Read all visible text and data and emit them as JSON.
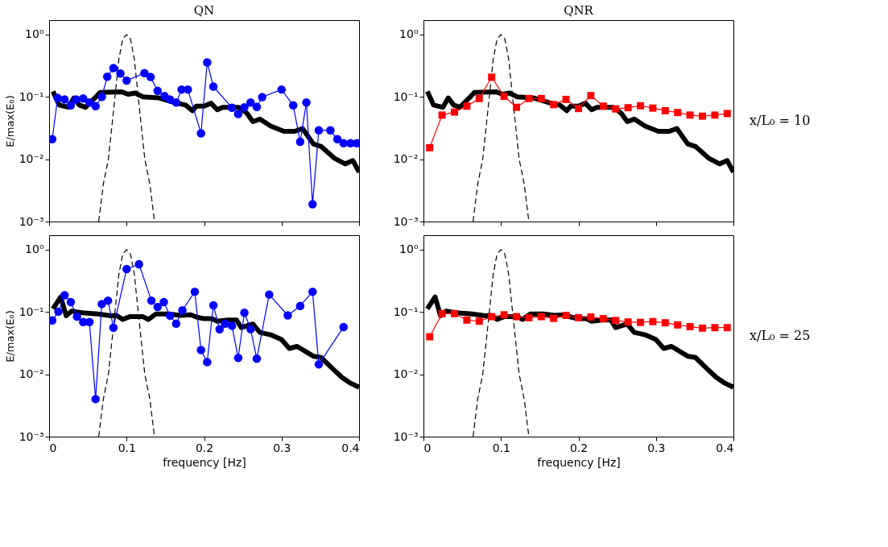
{
  "chart_data": [
    {
      "type": "line",
      "title": "QN",
      "ylabel": "E/max(E₀)",
      "log": true,
      "tick_labels": "y",
      "grid": false,
      "xlim": [
        0,
        0.4
      ],
      "xticks": [
        0,
        0.1,
        0.2,
        0.3,
        0.4
      ],
      "ylim": [
        0.001,
        1.7
      ],
      "yticks": [
        {
          "value": 0.001,
          "label": "10⁻³"
        },
        {
          "value": 0.01,
          "label": "10⁻²"
        },
        {
          "value": 0.1,
          "label": "10⁻¹"
        },
        {
          "value": 1,
          "label": "10⁰"
        }
      ],
      "series": [
        {
          "color": "#000000",
          "marker": "none",
          "line_style": "solid",
          "x": [
            0.005,
            0.013,
            0.025,
            0.032,
            0.039,
            0.047,
            0.059,
            0.066,
            0.094,
            0.102,
            0.111,
            0.121,
            0.142,
            0.162,
            0.176,
            0.185,
            0.19,
            0.2,
            0.209,
            0.217,
            0.224,
            0.245,
            0.255,
            0.263,
            0.272,
            0.286,
            0.303,
            0.317,
            0.327,
            0.341,
            0.351,
            0.368,
            0.382,
            0.392,
            0.4
          ],
          "values": [
            0.122,
            0.074,
            0.068,
            0.096,
            0.074,
            0.068,
            0.096,
            0.118,
            0.12,
            0.11,
            0.115,
            0.1,
            0.096,
            0.081,
            0.074,
            0.06,
            0.071,
            0.071,
            0.079,
            0.062,
            0.068,
            0.068,
            0.055,
            0.04,
            0.044,
            0.034,
            0.028,
            0.028,
            0.031,
            0.0176,
            0.016,
            0.0104,
            0.0084,
            0.0095,
            0.0062
          ]
        },
        {
          "color": "#000000",
          "marker": "none",
          "line_style": "dashed",
          "x": [
            0.064,
            0.07,
            0.0765,
            0.085,
            0.09,
            0.095,
            0.1,
            0.105,
            0.11,
            0.115,
            0.1235,
            0.13,
            0.136
          ],
          "values": [
            0.001,
            0.004,
            0.01,
            0.1,
            0.4,
            0.85,
            1,
            0.85,
            0.4,
            0.1,
            0.01,
            0.004,
            0.001
          ]
        },
        {
          "color": "#0000ff",
          "marker": "circle",
          "line_style": "solid",
          "x": [
            0.004,
            0.011,
            0.02,
            0.028,
            0.035,
            0.044,
            0.052,
            0.06,
            0.068,
            0.075,
            0.083,
            0.092,
            0.1,
            0.123,
            0.131,
            0.14,
            0.149,
            0.156,
            0.164,
            0.171,
            0.179,
            0.196,
            0.204,
            0.212,
            0.236,
            0.244,
            0.252,
            0.26,
            0.268,
            0.275,
            0.3,
            0.315,
            0.324,
            0.332,
            0.34,
            0.348,
            0.363,
            0.372,
            0.38,
            0.389,
            0.397
          ],
          "values": [
            0.021,
            0.096,
            0.091,
            0.073,
            0.091,
            0.094,
            0.081,
            0.071,
            0.1,
            0.21,
            0.29,
            0.237,
            0.182,
            0.24,
            0.208,
            0.125,
            0.103,
            0.091,
            0.081,
            0.131,
            0.131,
            0.026,
            0.357,
            0.146,
            0.067,
            0.053,
            0.068,
            0.081,
            0.069,
            0.099,
            0.131,
            0.073,
            0.019,
            0.081,
            0.0019,
            0.029,
            0.029,
            0.021,
            0.018,
            0.018,
            0.018
          ]
        }
      ]
    },
    {
      "type": "line",
      "title": "QNR",
      "annotations": [
        "x/L₀ = 10"
      ],
      "log": true,
      "tick_labels": "y",
      "grid": false,
      "xlim": [
        0,
        0.4
      ],
      "xticks": [
        0,
        0.1,
        0.2,
        0.3,
        0.4
      ],
      "ylim": [
        0.001,
        1.7
      ],
      "yticks": [
        {
          "value": 0.001,
          "label": "10⁻³"
        },
        {
          "value": 0.01,
          "label": "10⁻²"
        },
        {
          "value": 0.1,
          "label": "10⁻¹"
        },
        {
          "value": 1,
          "label": "10⁰"
        }
      ],
      "series": [
        {
          "color": "#000000",
          "marker": "none",
          "line_style": "solid",
          "x": [
            0.005,
            0.013,
            0.025,
            0.032,
            0.039,
            0.047,
            0.059,
            0.066,
            0.094,
            0.102,
            0.111,
            0.121,
            0.142,
            0.162,
            0.176,
            0.185,
            0.19,
            0.2,
            0.209,
            0.217,
            0.224,
            0.245,
            0.255,
            0.263,
            0.272,
            0.286,
            0.303,
            0.317,
            0.327,
            0.341,
            0.351,
            0.368,
            0.382,
            0.392,
            0.4
          ],
          "values": [
            0.122,
            0.074,
            0.068,
            0.096,
            0.074,
            0.068,
            0.096,
            0.118,
            0.12,
            0.11,
            0.115,
            0.1,
            0.096,
            0.081,
            0.074,
            0.06,
            0.071,
            0.071,
            0.079,
            0.062,
            0.068,
            0.068,
            0.055,
            0.04,
            0.044,
            0.034,
            0.028,
            0.028,
            0.031,
            0.0176,
            0.016,
            0.0104,
            0.0084,
            0.0095,
            0.0062
          ]
        },
        {
          "color": "#000000",
          "marker": "none",
          "line_style": "dashed",
          "x": [
            0.064,
            0.07,
            0.0765,
            0.085,
            0.09,
            0.095,
            0.1,
            0.105,
            0.11,
            0.115,
            0.1235,
            0.13,
            0.136
          ],
          "values": [
            0.001,
            0.004,
            0.01,
            0.1,
            0.4,
            0.85,
            1,
            0.85,
            0.4,
            0.1,
            0.01,
            0.004,
            0.001
          ]
        },
        {
          "color": "#ff0000",
          "marker": "square",
          "line_style": "solid",
          "x": [
            0.008,
            0.024,
            0.04,
            0.056,
            0.072,
            0.088,
            0.104,
            0.12,
            0.136,
            0.152,
            0.168,
            0.184,
            0.2,
            0.216,
            0.232,
            0.248,
            0.264,
            0.28,
            0.296,
            0.312,
            0.328,
            0.344,
            0.36,
            0.376,
            0.392
          ],
          "values": [
            0.0153,
            0.051,
            0.057,
            0.071,
            0.094,
            0.207,
            0.102,
            0.068,
            0.094,
            0.094,
            0.075,
            0.091,
            0.065,
            0.105,
            0.071,
            0.064,
            0.067,
            0.072,
            0.066,
            0.06,
            0.056,
            0.051,
            0.049,
            0.051,
            0.054
          ]
        }
      ]
    },
    {
      "type": "line",
      "ylabel": "E/max(E₀)",
      "xlabel": "frequency [Hz]",
      "log": true,
      "grid": false,
      "xlim": [
        0,
        0.4
      ],
      "xticks": [
        0,
        0.1,
        0.2,
        0.3,
        0.4
      ],
      "ylim": [
        0.001,
        1.7
      ],
      "yticks": [
        {
          "value": 0.001,
          "label": "10⁻³"
        },
        {
          "value": 0.01,
          "label": "10⁻²"
        },
        {
          "value": 0.1,
          "label": "10⁻¹"
        },
        {
          "value": 1,
          "label": "10⁰"
        }
      ],
      "series": [
        {
          "color": "#000000",
          "marker": "none",
          "line_style": "solid",
          "x": [
            0.005,
            0.015,
            0.022,
            0.029,
            0.046,
            0.063,
            0.08,
            0.087,
            0.095,
            0.104,
            0.121,
            0.128,
            0.138,
            0.155,
            0.169,
            0.183,
            0.19,
            0.2,
            0.21,
            0.217,
            0.231,
            0.242,
            0.248,
            0.263,
            0.272,
            0.286,
            0.3,
            0.31,
            0.32,
            0.341,
            0.351,
            0.365,
            0.378,
            0.389,
            0.4
          ],
          "values": [
            0.112,
            0.174,
            0.087,
            0.103,
            0.096,
            0.093,
            0.087,
            0.088,
            0.076,
            0.084,
            0.084,
            0.076,
            0.093,
            0.093,
            0.088,
            0.09,
            0.083,
            0.078,
            0.078,
            0.071,
            0.074,
            0.074,
            0.056,
            0.064,
            0.047,
            0.043,
            0.036,
            0.026,
            0.028,
            0.0195,
            0.0186,
            0.0126,
            0.0089,
            0.0072,
            0.0062
          ]
        },
        {
          "color": "#000000",
          "marker": "none",
          "line_style": "dashed",
          "x": [
            0.064,
            0.07,
            0.0765,
            0.085,
            0.09,
            0.095,
            0.1,
            0.105,
            0.11,
            0.115,
            0.1235,
            0.13,
            0.136
          ],
          "values": [
            0.001,
            0.004,
            0.01,
            0.1,
            0.4,
            0.85,
            1,
            0.85,
            0.4,
            0.1,
            0.01,
            0.004,
            0.001
          ]
        },
        {
          "color": "#0000ff",
          "marker": "circle",
          "line_style": "solid",
          "x": [
            0.004,
            0.012,
            0.02,
            0.028,
            0.036,
            0.044,
            0.052,
            0.06,
            0.068,
            0.076,
            0.083,
            0.1,
            0.116,
            0.132,
            0.14,
            0.148,
            0.156,
            0.164,
            0.172,
            0.188,
            0.196,
            0.204,
            0.212,
            0.22,
            0.227,
            0.236,
            0.244,
            0.252,
            0.26,
            0.268,
            0.284,
            0.308,
            0.324,
            0.34,
            0.348,
            0.38
          ],
          "values": [
            0.073,
            0.101,
            0.185,
            0.144,
            0.084,
            0.069,
            0.069,
            0.004,
            0.134,
            0.152,
            0.056,
            0.488,
            0.582,
            0.152,
            0.12,
            0.144,
            0.087,
            0.065,
            0.106,
            0.211,
            0.0245,
            0.0157,
            0.128,
            0.0527,
            0.065,
            0.06,
            0.0183,
            0.097,
            0.053,
            0.0178,
            0.19,
            0.088,
            0.125,
            0.211,
            0.0144,
            0.0573
          ]
        }
      ]
    },
    {
      "type": "line",
      "xlabel": "frequency [Hz]",
      "annotations": [
        "x/L₀ = 25"
      ],
      "log": true,
      "grid": false,
      "xlim": [
        0,
        0.4
      ],
      "xticks": [
        0,
        0.1,
        0.2,
        0.3,
        0.4
      ],
      "ylim": [
        0.001,
        1.7
      ],
      "yticks": [
        {
          "value": 0.001,
          "label": "10⁻³"
        },
        {
          "value": 0.01,
          "label": "10⁻²"
        },
        {
          "value": 0.1,
          "label": "10⁻¹"
        },
        {
          "value": 1,
          "label": "10⁰"
        }
      ],
      "series": [
        {
          "color": "#000000",
          "marker": "none",
          "line_style": "solid",
          "x": [
            0.005,
            0.015,
            0.022,
            0.029,
            0.046,
            0.063,
            0.08,
            0.087,
            0.095,
            0.104,
            0.121,
            0.128,
            0.138,
            0.155,
            0.169,
            0.183,
            0.19,
            0.2,
            0.21,
            0.217,
            0.231,
            0.242,
            0.248,
            0.263,
            0.272,
            0.286,
            0.3,
            0.31,
            0.32,
            0.341,
            0.351,
            0.365,
            0.378,
            0.389,
            0.4
          ],
          "values": [
            0.112,
            0.174,
            0.087,
            0.103,
            0.096,
            0.093,
            0.087,
            0.088,
            0.076,
            0.084,
            0.084,
            0.076,
            0.093,
            0.093,
            0.088,
            0.09,
            0.083,
            0.078,
            0.078,
            0.071,
            0.074,
            0.074,
            0.056,
            0.064,
            0.047,
            0.043,
            0.036,
            0.026,
            0.028,
            0.0195,
            0.0186,
            0.0126,
            0.0089,
            0.0072,
            0.0062
          ]
        },
        {
          "color": "#000000",
          "marker": "none",
          "line_style": "dashed",
          "x": [
            0.064,
            0.07,
            0.0765,
            0.085,
            0.09,
            0.095,
            0.1,
            0.105,
            0.11,
            0.115,
            0.1235,
            0.13,
            0.136
          ],
          "values": [
            0.001,
            0.004,
            0.01,
            0.1,
            0.4,
            0.85,
            1,
            0.85,
            0.4,
            0.1,
            0.01,
            0.004,
            0.001
          ]
        },
        {
          "color": "#ff0000",
          "marker": "square",
          "line_style": "solid",
          "x": [
            0.008,
            0.024,
            0.04,
            0.056,
            0.072,
            0.088,
            0.104,
            0.12,
            0.136,
            0.152,
            0.168,
            0.184,
            0.2,
            0.216,
            0.232,
            0.248,
            0.264,
            0.28,
            0.296,
            0.312,
            0.328,
            0.344,
            0.36,
            0.376,
            0.392
          ],
          "values": [
            0.04,
            0.094,
            0.094,
            0.074,
            0.071,
            0.084,
            0.09,
            0.084,
            0.081,
            0.084,
            0.079,
            0.088,
            0.081,
            0.083,
            0.078,
            0.073,
            0.069,
            0.068,
            0.07,
            0.067,
            0.062,
            0.058,
            0.055,
            0.056,
            0.056
          ]
        }
      ]
    }
  ]
}
